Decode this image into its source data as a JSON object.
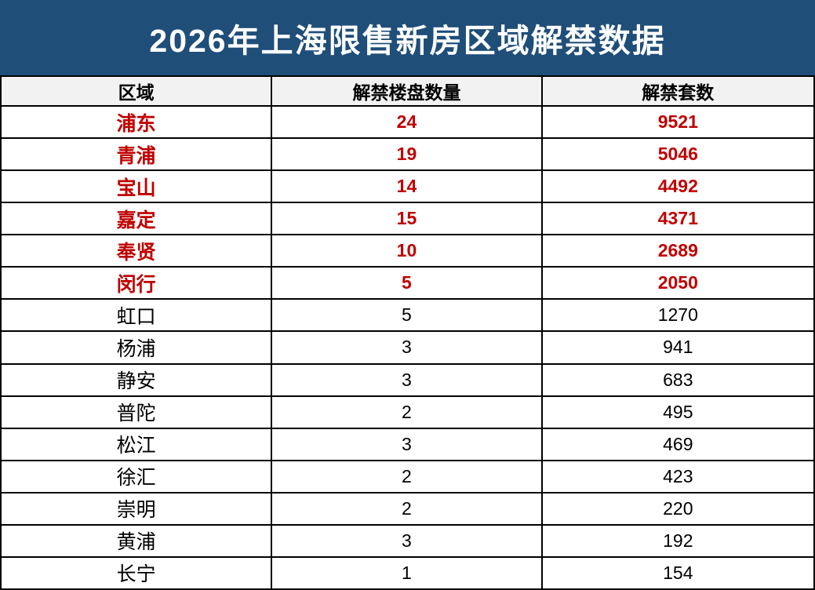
{
  "title": "2026年上海限售新房区域解禁数据",
  "columns": [
    "区域",
    "解禁楼盘数量",
    "解禁套数"
  ],
  "rows": [
    {
      "region": "浦东",
      "buildings": "24",
      "units": "9521",
      "highlight": true
    },
    {
      "region": "青浦",
      "buildings": "19",
      "units": "5046",
      "highlight": true
    },
    {
      "region": "宝山",
      "buildings": "14",
      "units": "4492",
      "highlight": true
    },
    {
      "region": "嘉定",
      "buildings": "15",
      "units": "4371",
      "highlight": true
    },
    {
      "region": "奉贤",
      "buildings": "10",
      "units": "2689",
      "highlight": true
    },
    {
      "region": "闵行",
      "buildings": "5",
      "units": "2050",
      "highlight": true
    },
    {
      "region": "虹口",
      "buildings": "5",
      "units": "1270",
      "highlight": false
    },
    {
      "region": "杨浦",
      "buildings": "3",
      "units": "941",
      "highlight": false
    },
    {
      "region": "静安",
      "buildings": "3",
      "units": "683",
      "highlight": false
    },
    {
      "region": "普陀",
      "buildings": "2",
      "units": "495",
      "highlight": false
    },
    {
      "region": "松江",
      "buildings": "3",
      "units": "469",
      "highlight": false
    },
    {
      "region": "徐汇",
      "buildings": "2",
      "units": "423",
      "highlight": false
    },
    {
      "region": "崇明",
      "buildings": "2",
      "units": "220",
      "highlight": false
    },
    {
      "region": "黄浦",
      "buildings": "3",
      "units": "192",
      "highlight": false
    },
    {
      "region": "长宁",
      "buildings": "1",
      "units": "154",
      "highlight": false
    }
  ],
  "colors": {
    "title_bg": "#1F4E79",
    "highlight_text": "#C00000",
    "header_bg": "#F2F2F2",
    "border": "#000000"
  },
  "chart_data": {
    "type": "table",
    "title": "2026年上海限售新房区域解禁数据",
    "columns": [
      "区域",
      "解禁楼盘数量",
      "解禁套数"
    ],
    "rows": [
      [
        "浦东",
        24,
        9521
      ],
      [
        "青浦",
        19,
        5046
      ],
      [
        "宝山",
        14,
        4492
      ],
      [
        "嘉定",
        15,
        4371
      ],
      [
        "奉贤",
        10,
        2689
      ],
      [
        "闵行",
        5,
        2050
      ],
      [
        "虹口",
        5,
        1270
      ],
      [
        "杨浦",
        3,
        941
      ],
      [
        "静安",
        3,
        683
      ],
      [
        "普陀",
        2,
        495
      ],
      [
        "松江",
        3,
        469
      ],
      [
        "徐汇",
        2,
        423
      ],
      [
        "崇明",
        2,
        220
      ],
      [
        "黄浦",
        3,
        192
      ],
      [
        "长宁",
        1,
        154
      ]
    ],
    "highlighted_rows": [
      "浦东",
      "青浦",
      "宝山",
      "嘉定",
      "奉贤",
      "闵行"
    ]
  }
}
